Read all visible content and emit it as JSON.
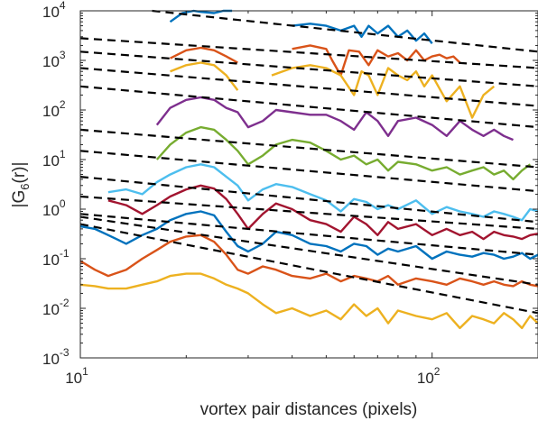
{
  "chart_data": {
    "type": "line",
    "xlabel": "vortex pair distances (pixels)",
    "ylabel_parts": {
      "main": "|G",
      "sub": "6",
      "rest": "(r)|"
    },
    "x_scale": "log",
    "y_scale": "log",
    "xlim": [
      10,
      200
    ],
    "ylim": [
      0.001,
      10000
    ],
    "x_ticks": [
      {
        "value": 10,
        "base": "10",
        "exp": "1"
      },
      {
        "value": 100,
        "base": "10",
        "exp": "2"
      }
    ],
    "y_ticks": [
      {
        "value": 0.001,
        "base": "10",
        "exp": "-3"
      },
      {
        "value": 0.01,
        "base": "10",
        "exp": "-2"
      },
      {
        "value": 0.1,
        "base": "10",
        "exp": "-1"
      },
      {
        "value": 1,
        "base": "10",
        "exp": "0"
      },
      {
        "value": 10,
        "base": "10",
        "exp": "1"
      },
      {
        "value": 100,
        "base": "10",
        "exp": "2"
      },
      {
        "value": 1000,
        "base": "10",
        "exp": "3"
      },
      {
        "value": 10000,
        "base": "10",
        "exp": "4"
      }
    ],
    "grid": false,
    "series": [
      {
        "color": "#0072BD",
        "x": [
          18,
          19.5,
          21,
          22,
          24,
          25.5,
          27
        ],
        "y": [
          6000,
          9000,
          10000,
          9500,
          9000,
          10000,
          10000
        ]
      },
      {
        "color": "#0072BD",
        "x": [
          40,
          45,
          50,
          55,
          60,
          63,
          66,
          70,
          75,
          80,
          85,
          90,
          95,
          100
        ],
        "y": [
          5000,
          5500,
          5000,
          4000,
          5000,
          3000,
          5000,
          3500,
          5000,
          3000,
          4000,
          2500,
          3500,
          2200
        ]
      },
      {
        "color": "#D95319",
        "x": [
          18,
          20,
          22,
          24,
          26,
          28
        ],
        "y": [
          1100,
          1600,
          1800,
          1600,
          1200,
          900
        ]
      },
      {
        "color": "#D95319",
        "x": [
          40,
          45,
          50,
          52,
          55,
          58,
          62,
          66,
          70,
          75,
          80,
          85,
          90,
          95,
          100,
          105,
          110,
          115,
          120
        ],
        "y": [
          1700,
          2000,
          1700,
          1000,
          500,
          1600,
          1500,
          800,
          1600,
          1200,
          1400,
          1000,
          1600,
          1000,
          1200,
          1300,
          1100,
          1200,
          900
        ]
      },
      {
        "color": "#EDB120",
        "x": [
          18,
          20,
          22,
          24,
          26,
          28
        ],
        "y": [
          600,
          800,
          900,
          800,
          500,
          250
        ]
      },
      {
        "color": "#EDB120",
        "x": [
          35,
          40,
          45,
          50,
          55,
          60,
          63,
          66,
          70,
          75,
          80,
          85,
          90,
          95,
          100,
          110,
          120,
          130,
          140,
          150
        ],
        "y": [
          500,
          700,
          800,
          700,
          500,
          200,
          600,
          500,
          200,
          700,
          500,
          400,
          600,
          300,
          500,
          150,
          300,
          70,
          200,
          300
        ]
      },
      {
        "color": "#7E2F8E",
        "x": [
          16.5,
          18,
          20,
          22,
          24,
          26,
          28,
          30,
          33,
          36,
          40,
          45,
          50,
          55,
          60,
          65,
          70,
          75,
          80,
          90,
          100,
          110,
          120,
          130,
          140,
          150,
          160,
          170
        ],
        "y": [
          50,
          110,
          160,
          180,
          160,
          110,
          90,
          45,
          60,
          100,
          90,
          80,
          80,
          60,
          40,
          90,
          60,
          30,
          60,
          70,
          50,
          30,
          60,
          40,
          30,
          40,
          30,
          25
        ]
      },
      {
        "color": "#77AC30",
        "x": [
          16.5,
          18,
          20,
          22,
          24,
          26,
          28,
          30,
          33,
          36,
          40,
          45,
          50,
          55,
          60,
          65,
          70,
          75,
          80,
          90,
          100,
          110,
          120,
          130,
          140,
          150,
          160,
          170,
          180,
          190
        ],
        "y": [
          10,
          20,
          35,
          45,
          40,
          25,
          15,
          8,
          12,
          20,
          25,
          22,
          15,
          10,
          12,
          8,
          10,
          6,
          9,
          8,
          6,
          7,
          5,
          6,
          7,
          5,
          6,
          4,
          6,
          8
        ]
      },
      {
        "color": "#4DBEEE",
        "x": [
          12,
          13.5,
          15,
          16.5,
          18,
          20,
          22,
          24,
          26,
          28,
          30,
          33,
          36,
          40,
          45,
          50,
          55,
          60,
          65,
          70,
          75,
          80,
          90,
          100,
          110,
          120,
          130,
          140,
          150,
          160,
          170,
          180,
          190,
          200
        ],
        "y": [
          2.2,
          2.5,
          2.0,
          3.5,
          5.0,
          7.0,
          8.0,
          7.0,
          4.5,
          3.0,
          1.5,
          2.5,
          3.2,
          2.8,
          2.0,
          1.5,
          0.9,
          1.6,
          1.4,
          1.0,
          1.2,
          1.0,
          1.5,
          0.8,
          1.1,
          0.9,
          0.8,
          0.7,
          0.9,
          0.8,
          0.7,
          0.6,
          1.0,
          0.9
        ]
      },
      {
        "color": "#A2142F",
        "x": [
          12,
          13.5,
          15,
          16.5,
          18,
          20,
          22,
          24,
          26,
          28,
          30,
          33,
          36,
          40,
          45,
          50,
          55,
          60,
          65,
          70,
          75,
          80,
          90,
          100,
          110,
          120,
          130,
          140,
          150,
          160,
          170,
          180,
          190,
          200
        ],
        "y": [
          1.5,
          1.2,
          0.8,
          1.2,
          1.8,
          2.5,
          3.0,
          2.6,
          1.6,
          0.8,
          0.4,
          0.8,
          1.3,
          1.0,
          0.6,
          0.5,
          0.35,
          0.7,
          0.5,
          0.3,
          0.55,
          0.4,
          0.5,
          0.3,
          0.4,
          0.3,
          0.35,
          0.25,
          0.35,
          0.3,
          0.28,
          0.25,
          0.3,
          0.32
        ]
      },
      {
        "color": "#0072BD",
        "x": [
          10,
          11,
          12,
          13.5,
          15,
          16.5,
          18,
          20,
          22,
          24,
          26,
          28,
          30,
          33,
          36,
          40,
          45,
          50,
          55,
          60,
          65,
          70,
          75,
          80,
          90,
          100,
          110,
          120,
          130,
          140,
          150,
          160,
          170,
          180,
          190,
          200
        ],
        "y": [
          0.45,
          0.4,
          0.3,
          0.2,
          0.3,
          0.4,
          0.6,
          0.8,
          0.9,
          0.75,
          0.35,
          0.18,
          0.14,
          0.2,
          0.35,
          0.3,
          0.2,
          0.18,
          0.14,
          0.2,
          0.18,
          0.12,
          0.16,
          0.14,
          0.18,
          0.1,
          0.14,
          0.12,
          0.11,
          0.13,
          0.12,
          0.1,
          0.11,
          0.13,
          0.1,
          0.12
        ]
      },
      {
        "color": "#D95319",
        "x": [
          10,
          11,
          12,
          13.5,
          15,
          16.5,
          18,
          20,
          22,
          24,
          26,
          28,
          30,
          33,
          36,
          40,
          45,
          50,
          55,
          60,
          65,
          70,
          75,
          80,
          90,
          100,
          110,
          120,
          130,
          140,
          150,
          160,
          170,
          180,
          190,
          200
        ],
        "y": [
          0.09,
          0.06,
          0.045,
          0.06,
          0.1,
          0.15,
          0.22,
          0.28,
          0.3,
          0.22,
          0.12,
          0.06,
          0.05,
          0.07,
          0.06,
          0.045,
          0.04,
          0.05,
          0.035,
          0.045,
          0.04,
          0.035,
          0.045,
          0.03,
          0.04,
          0.035,
          0.03,
          0.04,
          0.035,
          0.03,
          0.035,
          0.03,
          0.028,
          0.035,
          0.03,
          0.028
        ]
      },
      {
        "color": "#EDB120",
        "x": [
          10,
          11,
          12,
          13.5,
          15,
          16.5,
          18,
          20,
          22,
          24,
          26,
          28,
          30,
          33,
          36,
          40,
          45,
          50,
          55,
          60,
          65,
          70,
          75,
          80,
          90,
          100,
          110,
          120,
          130,
          140,
          150,
          160,
          170,
          180,
          190,
          200
        ],
        "y": [
          0.03,
          0.028,
          0.025,
          0.025,
          0.03,
          0.035,
          0.045,
          0.05,
          0.05,
          0.04,
          0.03,
          0.025,
          0.02,
          0.012,
          0.008,
          0.01,
          0.007,
          0.009,
          0.006,
          0.012,
          0.007,
          0.01,
          0.005,
          0.009,
          0.007,
          0.006,
          0.008,
          0.004,
          0.007,
          0.006,
          0.005,
          0.008,
          0.006,
          0.004,
          0.007,
          0.005
        ]
      }
    ],
    "fit_lines": [
      {
        "color": "#000000",
        "dash": "dashed",
        "x": [
          16,
          200
        ],
        "y": [
          10000,
          1500
        ]
      },
      {
        "color": "#000000",
        "dash": "dashed",
        "x": [
          10,
          200
        ],
        "y": [
          2800,
          700
        ]
      },
      {
        "color": "#000000",
        "dash": "dashed",
        "x": [
          10,
          200
        ],
        "y": [
          1500,
          300
        ]
      },
      {
        "color": "#000000",
        "dash": "dashed",
        "x": [
          10,
          200
        ],
        "y": [
          700,
          120
        ]
      },
      {
        "color": "#000000",
        "dash": "dashed",
        "x": [
          10,
          200
        ],
        "y": [
          300,
          45
        ]
      },
      {
        "color": "#000000",
        "dash": "dashed",
        "x": [
          10,
          200
        ],
        "y": [
          40,
          7
        ]
      },
      {
        "color": "#000000",
        "dash": "dashed",
        "x": [
          10,
          200
        ],
        "y": [
          15,
          2.3
        ]
      },
      {
        "color": "#000000",
        "dash": "dashed",
        "x": [
          10,
          200
        ],
        "y": [
          4.5,
          0.55
        ]
      },
      {
        "color": "#000000",
        "dash": "dashed",
        "x": [
          10,
          200
        ],
        "y": [
          1.8,
          0.4
        ]
      },
      {
        "color": "#000000",
        "dash": "dashed",
        "x": [
          10,
          200
        ],
        "y": [
          0.8,
          0.12
        ]
      },
      {
        "color": "#000000",
        "dash": "dashed",
        "x": [
          10,
          200
        ],
        "y": [
          0.7,
          0.03
        ]
      },
      {
        "color": "#000000",
        "dash": "dashed",
        "x": [
          10,
          200
        ],
        "y": [
          0.5,
          0.008
        ]
      }
    ]
  }
}
